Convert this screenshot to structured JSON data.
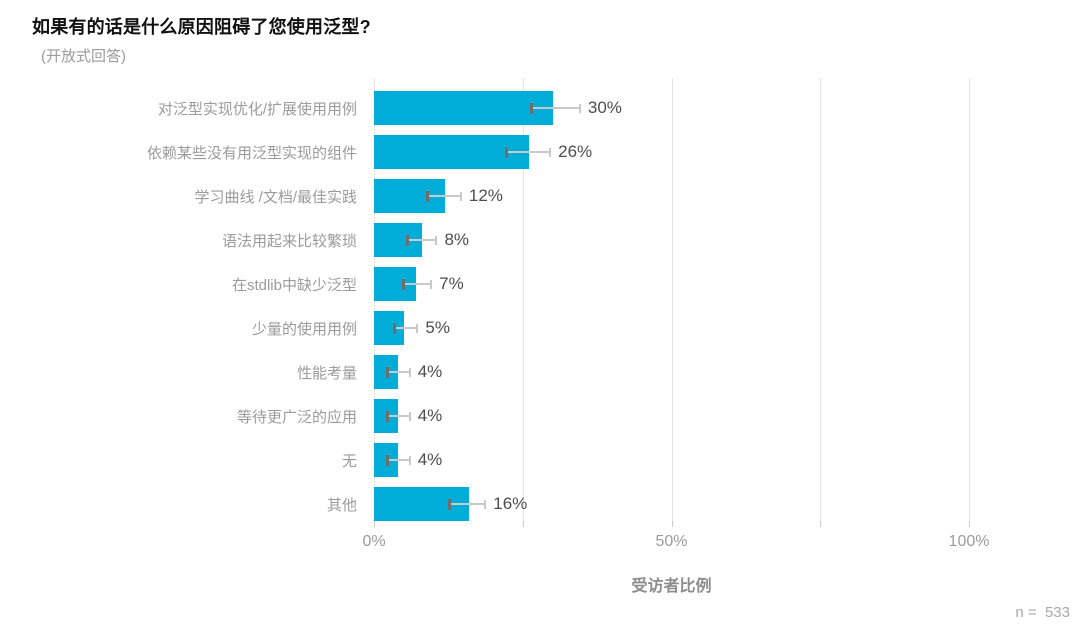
{
  "header": {
    "title": "如果有的话是什么原因阻碍了您使用泛型?",
    "subtitle": "(开放式回答)"
  },
  "footer": {
    "sample_size_label": "n =  533"
  },
  "colors": {
    "bar": "#00add8",
    "error_line": "#c9c9c9",
    "error_cap_dark": "#6e6e6e",
    "gridline": "#e4e4e4",
    "title": "#111111",
    "category_label": "#9b9b9b",
    "value_label": "#4d4d4d",
    "tick_label": "#9b9b9b",
    "axis_title": "#8c8c8c",
    "note": "#a8a8a8"
  },
  "chart_data": {
    "type": "bar",
    "orientation": "horizontal",
    "title": "如果有的话是什么原因阻碍了您使用泛型?",
    "subtitle": "(开放式回答)",
    "xlabel": "受访者比例",
    "xlim": [
      0,
      100
    ],
    "grid": true,
    "gridline_values": [
      0,
      25,
      50,
      75,
      100
    ],
    "xticks": [
      {
        "value": 0,
        "label": "0%"
      },
      {
        "value": 50,
        "label": "50%"
      },
      {
        "value": 100,
        "label": "100%"
      }
    ],
    "categories": [
      "对泛型实现优化/扩展使用用例",
      "依赖某些没有用泛型实现的组件",
      "学习曲线 /文档/最佳实践",
      "语法用起来比较繁琐",
      "在stdlib中缺少泛型",
      "少量的使用用例",
      "性能考量",
      "等待更广泛的应用",
      "无",
      "其他"
    ],
    "values": [
      30,
      26,
      12,
      8,
      7,
      5,
      4,
      4,
      4,
      16
    ],
    "value_labels": [
      "30%",
      "26%",
      "12%",
      "8%",
      "7%",
      "5%",
      "4%",
      "4%",
      "4%",
      "16%"
    ],
    "error_low": [
      26.4,
      22.2,
      8.9,
      5.5,
      4.9,
      3.4,
      2.2,
      2.2,
      2.2,
      12.6
    ],
    "error_high": [
      34.6,
      29.6,
      14.6,
      10.5,
      9.6,
      7.3,
      6.0,
      6.0,
      6.0,
      18.7
    ],
    "note": "n =  533"
  }
}
